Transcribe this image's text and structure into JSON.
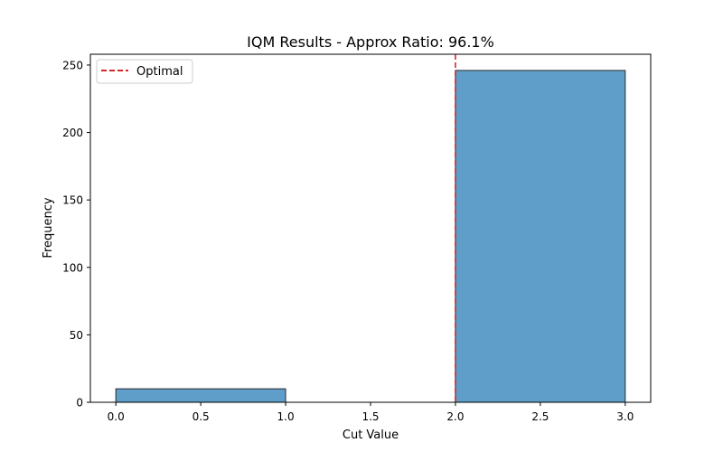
{
  "chart_data": {
    "type": "bar",
    "title": "IQM Results - Approx Ratio: 96.1%",
    "xlabel": "Cut Value",
    "ylabel": "Frequency",
    "xlim": [
      -0.15,
      3.15
    ],
    "ylim": [
      0,
      258
    ],
    "x_ticks": [
      "0.0",
      "0.5",
      "1.0",
      "1.5",
      "2.0",
      "2.5",
      "3.0"
    ],
    "y_ticks": [
      "0",
      "50",
      "100",
      "150",
      "200",
      "250"
    ],
    "bins": [
      {
        "x0": 0,
        "x1": 1,
        "value": 10
      },
      {
        "x0": 1,
        "x1": 2,
        "value": 0
      },
      {
        "x0": 2,
        "x1": 3,
        "value": 246
      }
    ],
    "optimal_line": {
      "x": 2.0,
      "label": "Optimal",
      "color": "#d62728",
      "style": "dashed"
    },
    "bar_color": "#5f9ec9",
    "bar_edge_color": "#2b2b2b",
    "legend": {
      "placement": "top-left",
      "entries": [
        "Optimal"
      ]
    },
    "grid": false
  }
}
